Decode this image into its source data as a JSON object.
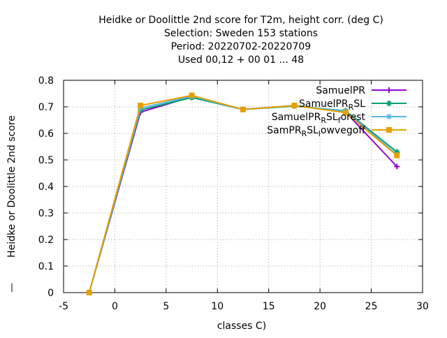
{
  "chart_data": {
    "type": "line",
    "title_lines": [
      "Heidke or Doolittle 2nd score  for T2m, height corr. (deg C)",
      "Selection: Sweden    153 stations",
      "Period: 20220702-20220709",
      "Used  00,12  + 00 01 ... 48"
    ],
    "xlabel": "classes C)",
    "ylabel": "Heidke or Doolittle 2nd score",
    "ylabel_prefix": "—",
    "xlim": [
      -5,
      30
    ],
    "ylim": [
      0,
      0.8
    ],
    "xticks": [
      -5,
      0,
      5,
      10,
      15,
      20,
      25,
      30
    ],
    "yticks": [
      0,
      0.1,
      0.2,
      0.3,
      0.4,
      0.5,
      0.6,
      0.7,
      0.8
    ],
    "grid": true,
    "legend_position": "top-right",
    "x": [
      -2.5,
      2.5,
      7.5,
      12.5,
      17.5,
      22.5,
      27.5
    ],
    "series": [
      {
        "name": "SamuelPR",
        "label_main": "SamuelPR",
        "label_sub": "",
        "label_tail": "",
        "color": "#9400d3",
        "marker": "plus",
        "values": [
          0.0,
          0.68,
          0.738,
          0.69,
          0.705,
          0.68,
          0.475
        ]
      },
      {
        "name": "SamuelPR_RSL",
        "label_main": "SamuelPR",
        "label_sub": "R",
        "label_tail": "SL",
        "color": "#009e73",
        "marker": "cross",
        "values": [
          0.0,
          0.688,
          0.735,
          0.69,
          0.703,
          0.685,
          0.53
        ]
      },
      {
        "name": "SamuelPR_RSL_forest",
        "label_main": "SamuelPR",
        "label_sub": "R",
        "label_tail": "SL",
        "label_sub2": "f",
        "label_tail2": "orest",
        "color": "#56b4e9",
        "marker": "star",
        "values": [
          0.0,
          0.695,
          0.74,
          0.69,
          0.705,
          0.683,
          0.52
        ]
      },
      {
        "name": "SamPR_RSL_lowvegoff",
        "label_main": "SamPR",
        "label_sub": "R",
        "label_tail": "SL",
        "label_sub2": "l",
        "label_tail2": "owvegoff",
        "color": "#e69f00",
        "marker": "square",
        "values": [
          0.0,
          0.705,
          0.743,
          0.69,
          0.705,
          0.678,
          0.517
        ]
      }
    ]
  }
}
